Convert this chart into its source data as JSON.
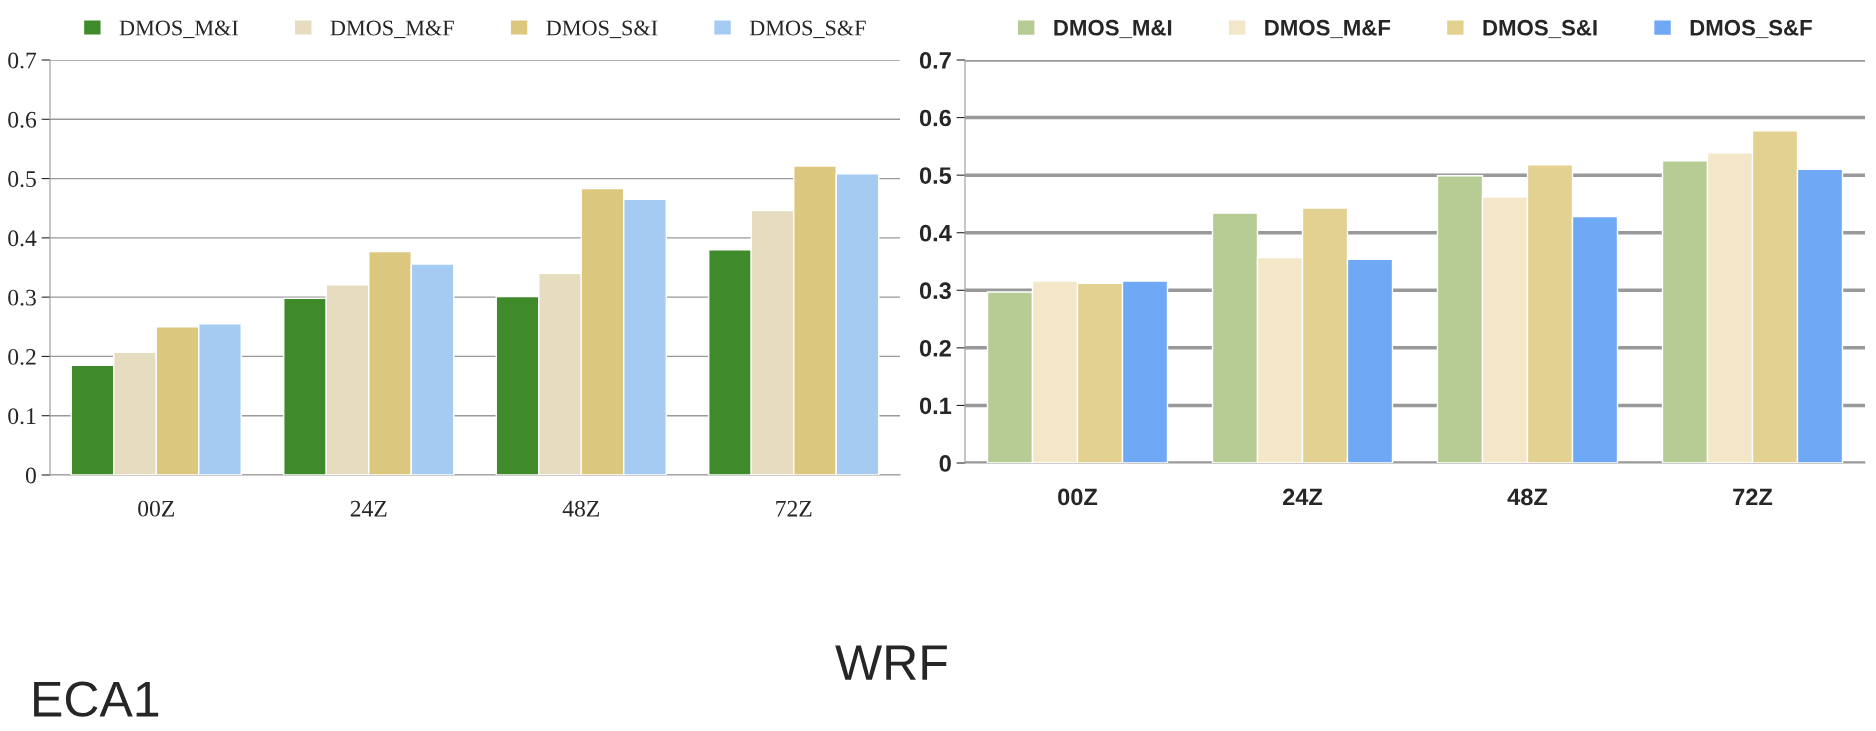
{
  "chart_data": [
    {
      "type": "bar",
      "categories": [
        "00Z",
        "24Z",
        "48Z",
        "72Z"
      ],
      "series": [
        {
          "name": "DMOS_M&I",
          "color": "#3f8a2a",
          "values": [
            0.185,
            0.298,
            0.301,
            0.38
          ]
        },
        {
          "name": "DMOS_M&F",
          "color": "#e6dcc0",
          "values": [
            0.207,
            0.321,
            0.34,
            0.446
          ]
        },
        {
          "name": "DMOS_S&I",
          "color": "#dcc77e",
          "values": [
            0.25,
            0.377,
            0.483,
            0.521
          ]
        },
        {
          "name": "DMOS_S&F",
          "color": "#a6cbf2",
          "values": [
            0.255,
            0.356,
            0.465,
            0.508
          ]
        }
      ],
      "ylim": [
        0,
        0.7
      ],
      "yticks": [
        {
          "value": 0,
          "label": "0"
        },
        0.1,
        0.2,
        0.3,
        0.4,
        0.5,
        0.6,
        0.7
      ],
      "grid": "y",
      "legend": "top",
      "annotations": [
        "ECA1"
      ]
    },
    {
      "type": "bar",
      "categories": [
        "00Z",
        "24Z",
        "48Z",
        "72Z"
      ],
      "series": [
        {
          "name": "DMOS_M&I",
          "color": "#b7cc95",
          "values": [
            0.297,
            0.434,
            0.499,
            0.525
          ]
        },
        {
          "name": "DMOS_M&F",
          "color": "#f4e6c8",
          "values": [
            0.316,
            0.357,
            0.462,
            0.539
          ]
        },
        {
          "name": "DMOS_S&I",
          "color": "#e2d190",
          "values": [
            0.312,
            0.443,
            0.518,
            0.577
          ]
        },
        {
          "name": "DMOS_S&F",
          "color": "#6fa8f5",
          "values": [
            0.316,
            0.354,
            0.428,
            0.51
          ]
        }
      ],
      "ylim": [
        0,
        0.7
      ],
      "yticks": [
        {
          "value": 0,
          "label": "0"
        },
        0.1,
        0.2,
        0.3,
        0.4,
        0.5,
        0.6,
        0.7
      ],
      "grid": "y",
      "legend": "top",
      "annotations": [
        "WRF"
      ]
    }
  ]
}
